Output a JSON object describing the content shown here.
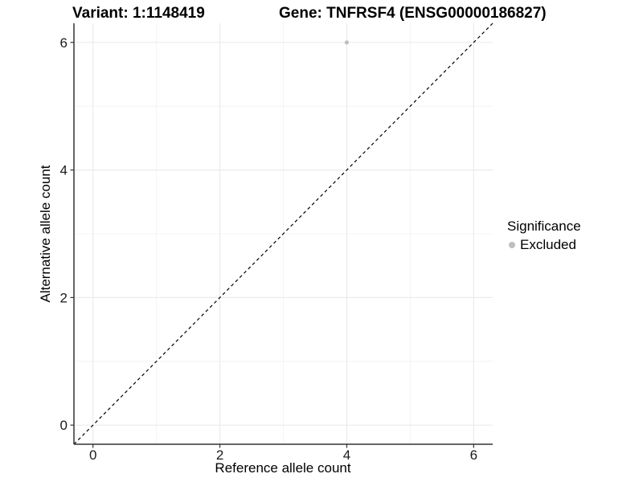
{
  "header": {
    "variant_title": "Variant: 1:1148419",
    "gene_title": "Gene: TNFRSF4 (ENSG00000186827)"
  },
  "legend": {
    "title": "Significance",
    "items": [
      {
        "label": "Excluded",
        "color": "#bebebe"
      }
    ]
  },
  "chart_data": {
    "type": "scatter",
    "title_left": "Variant: 1:1148419",
    "title_right": "Gene: TNFRSF4 (ENSG00000186827)",
    "xlabel": "Reference allele count",
    "ylabel": "Alternative allele count",
    "xlim": [
      -0.3,
      6.3
    ],
    "ylim": [
      -0.3,
      6.3
    ],
    "x_ticks": [
      0,
      2,
      4,
      6
    ],
    "y_ticks": [
      0,
      2,
      4,
      6
    ],
    "x_minor_ticks": [
      1,
      3,
      5
    ],
    "y_minor_ticks": [
      1,
      3,
      5
    ],
    "grid": true,
    "legend_position": "right",
    "legend_title": "Significance",
    "series": [
      {
        "name": "Excluded",
        "color": "#bebebe",
        "points": [
          [
            4,
            6
          ]
        ]
      }
    ],
    "reference_line": {
      "type": "identity",
      "slope": 1,
      "intercept": 0,
      "style": "dashed",
      "color": "#000000"
    },
    "colors": {
      "major_grid": "#ebebeb",
      "minor_grid": "#f4f4f4",
      "axis_line": "#333333",
      "tick_text": "#1a1a1a"
    }
  }
}
